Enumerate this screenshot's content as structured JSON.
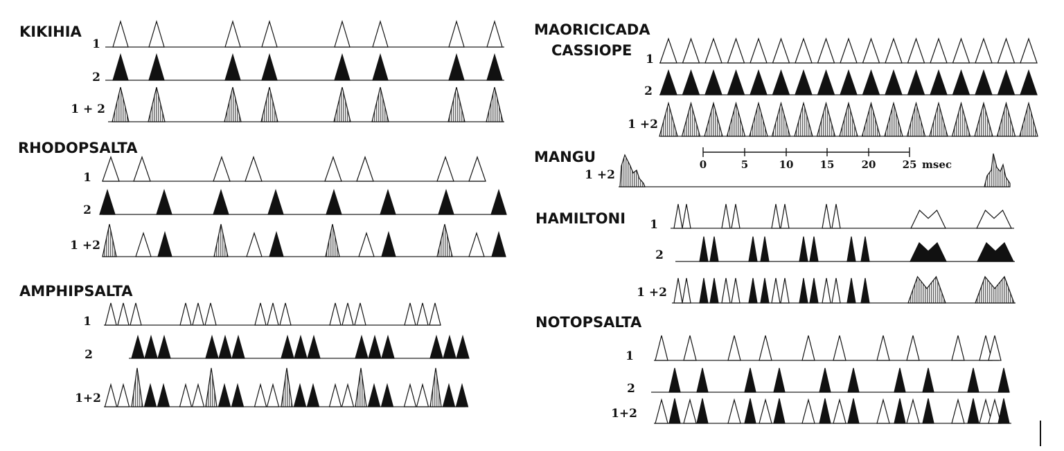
{
  "colors": {
    "ink": "#111111",
    "paper": "#ffffff"
  },
  "groups": {
    "kikihia": {
      "title": "KIKIHIA",
      "rows": [
        "1",
        "2",
        "1 + 2"
      ]
    },
    "rhodopsalta": {
      "title": "RHODOPSALTA",
      "rows": [
        "1",
        "2",
        "1 +2"
      ]
    },
    "amphipsalta": {
      "title": "AMPHIPSALTA",
      "rows": [
        "1",
        "2",
        "1+2"
      ]
    },
    "maoricicada": {
      "title_line1": "MAORICICADA",
      "title_line2": "CASSIOPE",
      "rows": [
        "1",
        "2",
        "1 +2"
      ]
    },
    "mangu": {
      "title": "MANGU",
      "rows": [
        "1 +2"
      ]
    },
    "hamiltoni": {
      "title": "HAMILTONI",
      "rows": [
        "1",
        "2",
        "1 +2"
      ]
    },
    "notopsalta": {
      "title": "NOTOPSALTA",
      "rows": [
        "1",
        "2",
        "1+2"
      ]
    }
  },
  "scale": {
    "ticks": [
      "0",
      "5",
      "10",
      "15",
      "20",
      "25"
    ],
    "unit": "msec"
  }
}
